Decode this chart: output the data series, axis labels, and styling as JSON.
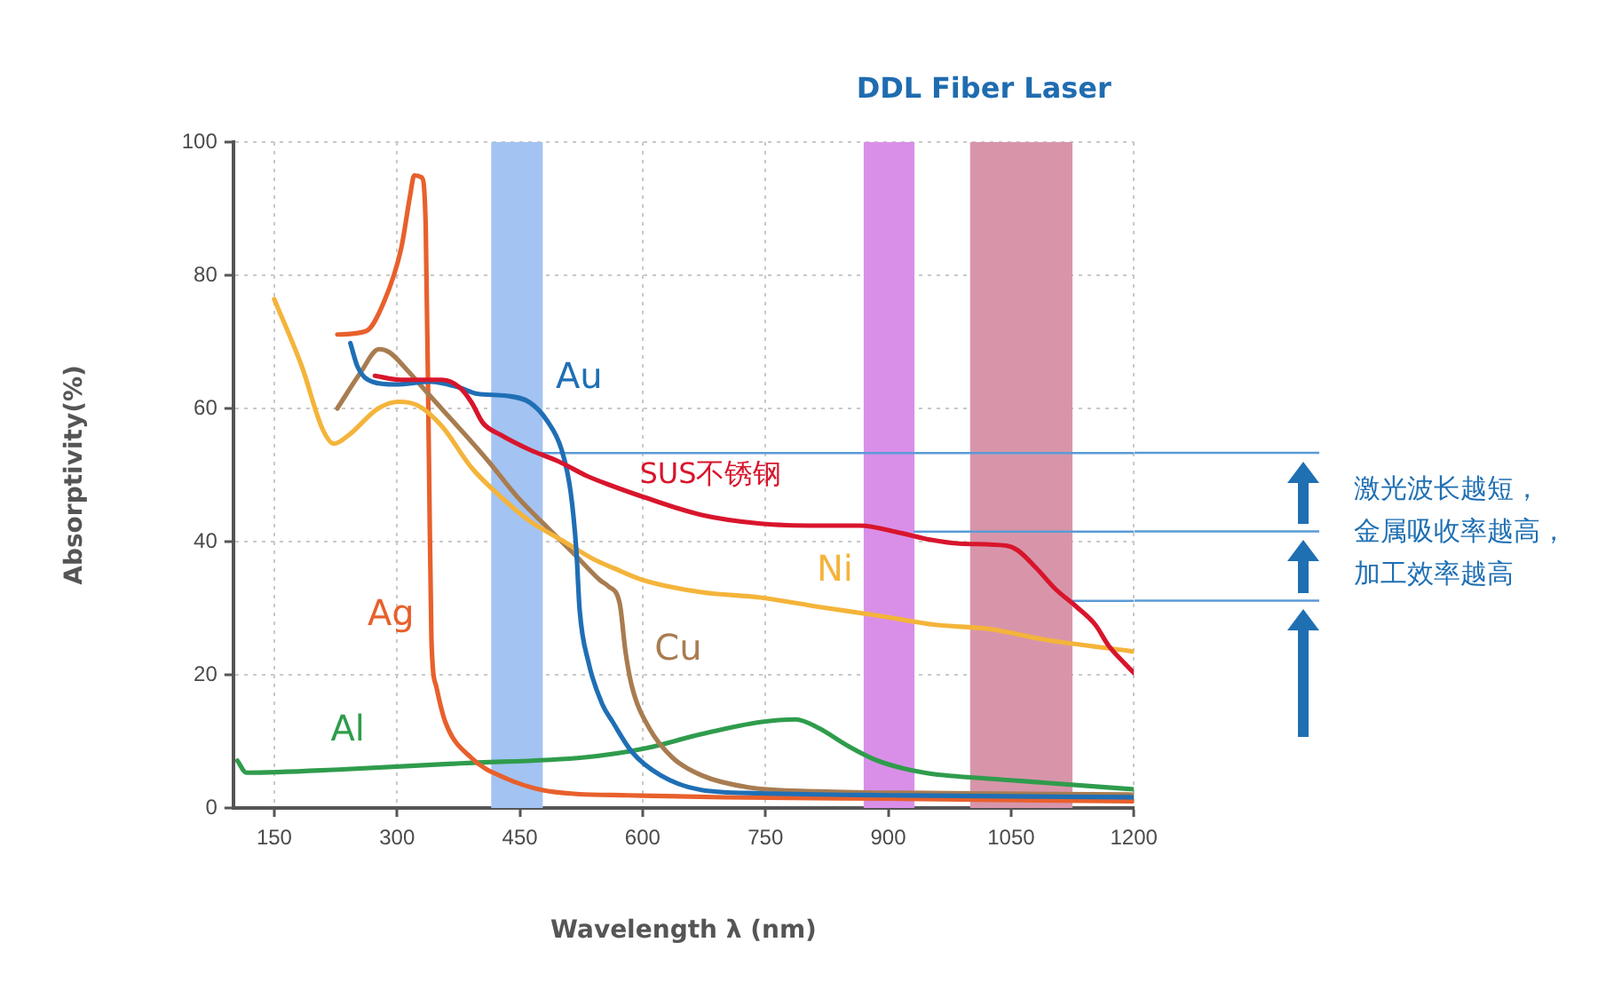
{
  "chart_data": {
    "type": "line",
    "xlabel": "Wavelength λ (nm)",
    "ylabel": "Absorptivity(%)",
    "xlim": [
      100,
      1200
    ],
    "xticks": [
      150,
      300,
      450,
      600,
      750,
      900,
      1050,
      1200
    ],
    "ylim": [
      0,
      100
    ],
    "yticks": [
      0,
      20,
      40,
      60,
      80,
      100
    ],
    "grid": true,
    "marker": "none",
    "line_style": "solid",
    "series": [
      {
        "name": "SUS不锈钢",
        "color": "#d8152c",
        "x": [
          273,
          305,
          355,
          377,
          391,
          405,
          427,
          462,
          498,
          533,
          562,
          601,
          672,
          744,
          815,
          865,
          915,
          951,
          987,
          1044,
          1058,
          1081,
          1104,
          1130,
          1153,
          1169,
          1188,
          1200
        ],
        "values": [
          64.9,
          64.3,
          64.3,
          63.1,
          60.9,
          57.8,
          56,
          53.8,
          52,
          49.8,
          48.4,
          46.7,
          44,
          42.7,
          42.4,
          42.4,
          41.3,
          40.3,
          39.7,
          39.4,
          38.7,
          36,
          32.9,
          30.2,
          27.5,
          24.4,
          21.8,
          20.3
        ]
      },
      {
        "name": "Au",
        "color": "#1f6fb5",
        "x": [
          243,
          252,
          270,
          298,
          341,
          377,
          398,
          434,
          462,
          483,
          501,
          512,
          519,
          523,
          534,
          551,
          563,
          587,
          622,
          672,
          744,
          900,
          1200
        ],
        "values": [
          69.8,
          66.2,
          64,
          63.6,
          64,
          63.1,
          62.2,
          61.9,
          60.9,
          58.2,
          53.8,
          47.5,
          38.7,
          29.8,
          21.8,
          15.5,
          13,
          8.4,
          4.9,
          2.7,
          2.2,
          1.9,
          1.6
        ]
      },
      {
        "name": "Ni",
        "color": "#f4b43a",
        "x": [
          150,
          184,
          209,
          223,
          241,
          277,
          302,
          326,
          355,
          391,
          427,
          462,
          504,
          541,
          565,
          601,
          672,
          744,
          815,
          887,
          958,
          1023,
          1090,
          1200
        ],
        "values": [
          76.4,
          66.2,
          56.9,
          54.7,
          56,
          60,
          61,
          60.4,
          57.3,
          51.1,
          46.7,
          43.1,
          40,
          37.3,
          36,
          34.2,
          32.4,
          31.6,
          30.2,
          28.9,
          27.5,
          26.9,
          25.3,
          23.5
        ]
      },
      {
        "name": "Cu",
        "color": "#a87c50",
        "x": [
          227,
          255,
          278,
          291,
          312,
          341,
          377,
          412,
          447,
          483,
          519,
          548,
          558,
          572,
          579,
          587,
          608,
          637,
          672,
          729,
          815,
          1000,
          1200
        ],
        "values": [
          60,
          65.3,
          68.9,
          68.4,
          65.8,
          61.8,
          56.9,
          52,
          46.7,
          42.2,
          37.8,
          34.2,
          33.3,
          30.7,
          23.5,
          18.2,
          12,
          7.5,
          4.9,
          3.1,
          2.5,
          2.2,
          2
        ]
      },
      {
        "name": "Ag",
        "color": "#e8602c",
        "x": [
          227,
          262,
          284,
          305,
          316,
          321,
          330,
          335,
          339,
          342,
          348,
          359,
          391,
          434,
          477,
          520,
          582,
          700,
          900,
          1200
        ],
        "values": [
          71.1,
          71.6,
          76,
          84,
          92,
          95,
          94.7,
          87.5,
          52,
          25.3,
          18.2,
          12.9,
          7.5,
          4.4,
          2.7,
          2.1,
          1.9,
          1.6,
          1.4,
          1
        ]
      },
      {
        "name": "Al",
        "color": "#2f9c4c",
        "x": [
          105,
          116,
          234,
          377,
          529,
          601,
          672,
          744,
          787,
          815,
          851,
          887,
          944,
          1023,
          1090,
          1200
        ],
        "values": [
          7.1,
          5.3,
          5.8,
          6.7,
          7.6,
          8.9,
          11.1,
          12.9,
          13.3,
          12,
          9.3,
          7.1,
          5.3,
          4.4,
          3.8,
          2.8
        ]
      },
      {
        "color": "#5a9bd6",
        "x": [
          478,
          1200
        ],
        "values": [
          53.3,
          53.3
        ]
      },
      {
        "color": "#5a9bd6",
        "x": [
          932,
          1200
        ],
        "values": [
          41.5,
          41.5
        ]
      },
      {
        "color": "#5a9bd6",
        "x": [
          1125,
          1200
        ],
        "values": [
          31.1,
          31.1
        ]
      }
    ],
    "bands": [
      {
        "axis": "x",
        "from": 415,
        "to": 478,
        "color": "#a3c3f2"
      },
      {
        "axis": "x",
        "from": 870,
        "to": 932,
        "label": "DDL",
        "color": "#d98fe8"
      },
      {
        "axis": "x",
        "from": 1000,
        "to": 1125,
        "label": "Fiber Laser",
        "color": "#d895aa"
      }
    ],
    "annotations": [
      "激光波长越短，金属吸收率越高，加工效率越高"
    ]
  }
}
